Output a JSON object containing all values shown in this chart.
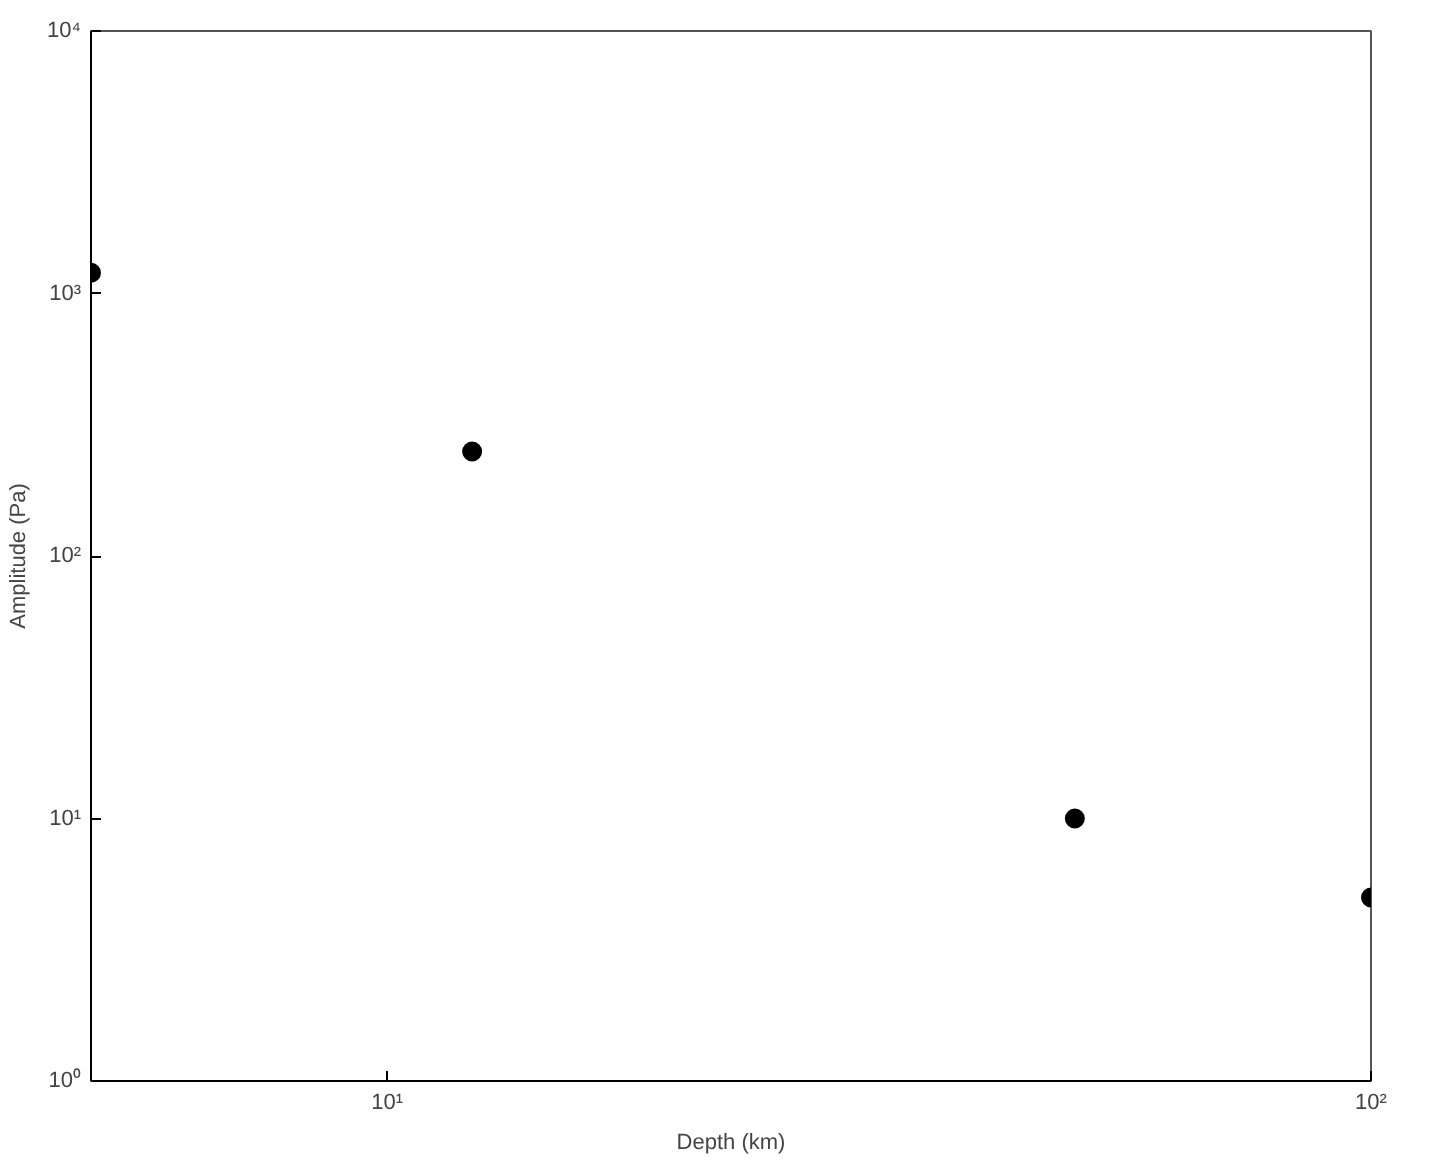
{
  "chart_data": {
    "type": "scatter",
    "xlabel": "Depth (km)",
    "ylabel": "Amplitude (Pa)",
    "x": [
      5,
      12.2,
      50,
      100
    ],
    "series": [
      {
        "color": "#000000",
        "values": [
          1200,
          250,
          10,
          5
        ]
      }
    ],
    "log": "xy",
    "xlim": [
      5,
      100
    ],
    "ylim": [
      1,
      10000
    ],
    "xticks": [
      {
        "value": 10,
        "label": "10¹"
      },
      {
        "value": 100,
        "label": "10²"
      }
    ],
    "yticks": [
      {
        "value": 1,
        "label": "10⁰"
      },
      {
        "value": 10,
        "label": "10¹"
      },
      {
        "value": 100,
        "label": "10²"
      },
      {
        "value": 1000,
        "label": "10³"
      },
      {
        "value": 10000,
        "label": "10⁴"
      }
    ],
    "grid": false,
    "marker": "circle"
  }
}
